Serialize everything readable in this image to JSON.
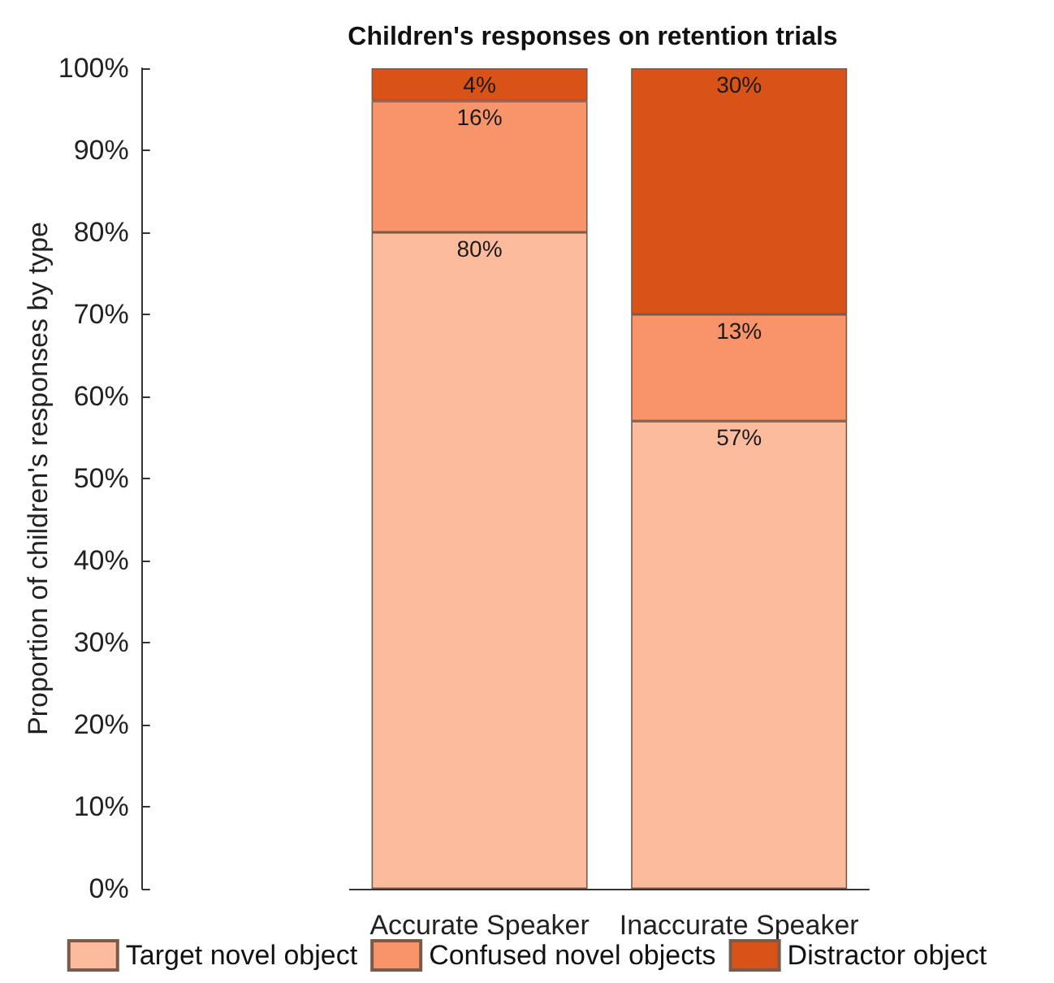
{
  "chart_data": {
    "type": "bar",
    "title": "Children's responses on retention trials",
    "ylabel": "Proportion of children's responses by type",
    "categories": [
      "Accurate Speaker",
      "Inaccurate Speaker"
    ],
    "stacked": true,
    "series": [
      {
        "name": "Target novel object",
        "color": "#fdbb9e",
        "values": [
          80,
          57
        ],
        "value_labels": [
          "80%",
          "57%"
        ]
      },
      {
        "name": "Confused novel objects",
        "color": "#f9946a",
        "values": [
          16,
          13
        ],
        "value_labels": [
          "16%",
          "13%"
        ]
      },
      {
        "name": "Distractor object",
        "color": "#d95319",
        "values": [
          4,
          30
        ],
        "value_labels": [
          "4%",
          "30%"
        ]
      }
    ],
    "ylim": [
      0,
      100
    ],
    "yticks": [
      {
        "value": 0,
        "label": "0%"
      },
      {
        "value": 10,
        "label": "10%"
      },
      {
        "value": 20,
        "label": "20%"
      },
      {
        "value": 30,
        "label": "30%"
      },
      {
        "value": 40,
        "label": "40%"
      },
      {
        "value": 50,
        "label": "50%"
      },
      {
        "value": 60,
        "label": "60%"
      },
      {
        "value": 70,
        "label": "70%"
      },
      {
        "value": 80,
        "label": "80%"
      },
      {
        "value": 90,
        "label": "90%"
      },
      {
        "value": 100,
        "label": "100%"
      }
    ],
    "grid": false,
    "legend": "bottom"
  }
}
